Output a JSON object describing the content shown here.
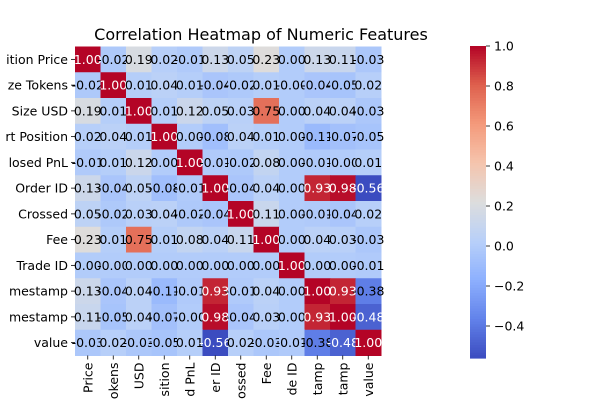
{
  "chart_data": {
    "type": "heatmap",
    "title": "Correlation Heatmap of Numeric Features",
    "row_labels": [
      "Position Price",
      "Size Tokens",
      "Size USD",
      "Start Position",
      "Closed PnL",
      "Order ID",
      "Crossed",
      "Fee",
      "Trade ID",
      "Timestamp",
      "Timestamp",
      "value"
    ],
    "col_labels": [
      "Price",
      "Tokens",
      "USD",
      "Position",
      "Closed PnL",
      "Order ID",
      "Crossed",
      "Fee",
      "Trade ID",
      "Timestamp",
      "Timestamp",
      "value"
    ],
    "col_labels_visible": [
      "Price",
      "okens",
      "USD",
      "sition",
      "d PnL",
      "er ID",
      "ossed",
      "Fee",
      "de ID",
      "tamp",
      "tamp",
      "value"
    ],
    "row_labels_visible": [
      "ition Price",
      "ze Tokens",
      "Size USD",
      "rt Position",
      "losed PnL",
      "Order ID",
      "Crossed",
      "Fee",
      "Trade ID",
      "mestamp",
      "mestamp",
      "value"
    ],
    "cell_labels": [
      [
        "1.00",
        "-0.02",
        "0.19",
        "0.02",
        "-0.01",
        "0.13",
        "0.05",
        "0.23",
        "0.00",
        "0.13",
        "0.11",
        "-0.03"
      ],
      [
        "-0.02",
        "1.00",
        "0.01",
        "0.04",
        "0.01",
        "-0.04",
        "-0.02",
        "0.01",
        "-0.00",
        "-0.04",
        "-0.05",
        "0.02"
      ],
      [
        "0.19",
        "0.01",
        "1.00",
        "0.01",
        "0.12",
        "0.05",
        "0.03",
        "0.75",
        "0.00",
        "0.04",
        "0.04",
        "-0.03"
      ],
      [
        "0.02",
        "0.04",
        "0.01",
        "1.00",
        "0.00",
        "-0.08",
        "0.04",
        "0.01",
        "0.00",
        "-0.11",
        "-0.07",
        "-0.05"
      ],
      [
        "-0.01",
        "0.01",
        "0.12",
        "0.00",
        "1.00",
        "-0.01",
        "-0.02",
        "0.08",
        "0.00",
        "-0.01",
        "-0.00",
        "0.01"
      ],
      [
        "0.13",
        "-0.04",
        "0.05",
        "-0.08",
        "-0.01",
        "1.00",
        "-0.04",
        "0.04",
        "0.00",
        "0.93",
        "0.98",
        "-0.56"
      ],
      [
        "0.05",
        "-0.02",
        "0.03",
        "0.04",
        "-0.02",
        "-0.04",
        "1.00",
        "0.11",
        "0.00",
        "-0.01",
        "-0.04",
        "0.02"
      ],
      [
        "0.23",
        "0.01",
        "0.75",
        "0.01",
        "0.08",
        "0.04",
        "0.11",
        "1.00",
        "0.00",
        "0.04",
        "0.03",
        "-0.03"
      ],
      [
        "0.00",
        "-0.00",
        "0.00",
        "0.00",
        "0.00",
        "0.00",
        "0.00",
        "0.00",
        "1.00",
        "0.00",
        "0.00",
        "-0.01"
      ],
      [
        "0.13",
        "-0.04",
        "0.04",
        "-0.11",
        "-0.01",
        "0.93",
        "-0.01",
        "0.04",
        "0.00",
        "1.00",
        "0.93",
        "-0.38"
      ],
      [
        "0.11",
        "-0.05",
        "0.04",
        "-0.07",
        "-0.00",
        "0.98",
        "-0.04",
        "0.03",
        "0.00",
        "0.93",
        "1.00",
        "-0.48"
      ],
      [
        "-0.03",
        "0.02",
        "-0.03",
        "-0.05",
        "0.01",
        "-0.56",
        "0.02",
        "-0.03",
        "-0.01",
        "-0.38",
        "-0.48",
        "1.00"
      ]
    ],
    "colorbar": {
      "cmap": "coolwarm",
      "vmin": -0.56,
      "vmax": 1.0,
      "ticks": [
        1.0,
        0.8,
        0.6,
        0.4,
        0.2,
        0.0,
        -0.2,
        -0.4
      ],
      "tick_labels": [
        "1.0",
        "0.8",
        "0.6",
        "0.4",
        "0.2",
        "0.0",
        "−0.2",
        "−0.4"
      ]
    },
    "grid": false,
    "legend": "colorbar-right"
  }
}
